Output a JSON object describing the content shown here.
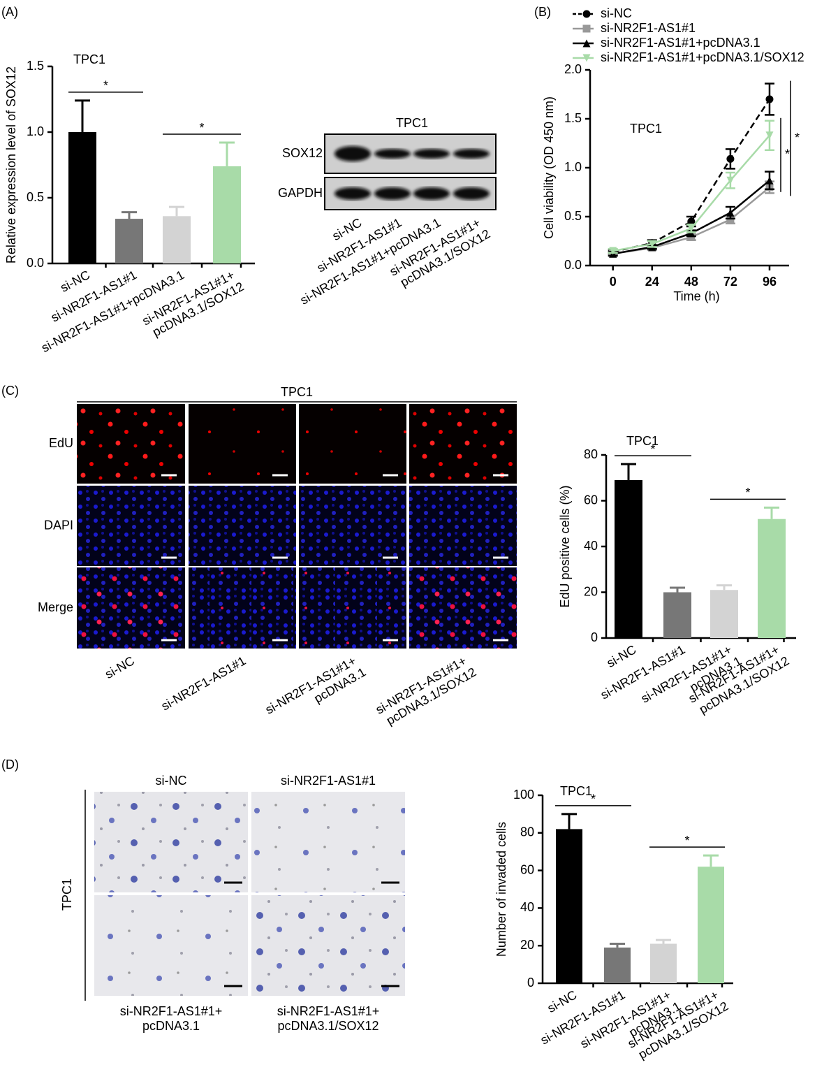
{
  "panel_labels": [
    "(A)",
    "(B)",
    "(C)",
    "(D)"
  ],
  "blot": {
    "title": "TPC1",
    "rows": [
      "SOX12",
      "GAPDH"
    ],
    "lanes": [
      [
        "si-NC"
      ],
      [
        "si-NR2F1-AS1#1"
      ],
      [
        "si-NR2F1-AS1#1+pcDNA3.1"
      ],
      [
        "si-NR2F1-AS1#1+",
        "pcDNA3.1/SOX12"
      ]
    ]
  },
  "edu_images": {
    "title": "TPC1",
    "rows": [
      "EdU",
      "DAPI",
      "Merge"
    ],
    "columns": [
      [
        "si-NC"
      ],
      [
        "si-NR2F1-AS1#1"
      ],
      [
        "si-NR2F1-AS1#1+",
        "pcDNA3.1"
      ],
      [
        "si-NR2F1-AS1#1+",
        "pcDNA3.1/SOX12"
      ]
    ]
  },
  "invasion_images": {
    "label": "TPC1",
    "columns": [
      [
        "si-NC"
      ],
      [
        "si-NR2F1-AS1#1"
      ],
      [
        "si-NR2F1-AS1#1+",
        "pcDNA3.1"
      ],
      [
        "si-NR2F1-AS1#1+",
        "pcDNA3.1/SOX12"
      ]
    ]
  },
  "chart_data": [
    {
      "type": "bar",
      "title": "TPC1",
      "y_label": "Relative expression level of SOX12",
      "categories": [
        [
          "si-NC"
        ],
        [
          "si-NR2F1-AS1#1"
        ],
        [
          "si-NR2F1-AS1#1+pcDNA3.1"
        ],
        [
          "si-NR2F1-AS1#1+",
          "pcDNA3.1/SOX12"
        ]
      ],
      "values": [
        1.0,
        0.34,
        0.36,
        0.74
      ],
      "errors": [
        0.24,
        0.05,
        0.07,
        0.18
      ],
      "colors": [
        "#000000",
        "#777777",
        "#d3d3d3",
        "#a8dba8"
      ],
      "ylim": [
        0,
        1.5
      ],
      "yticks": [
        {
          "value": 0,
          "label": "0.0"
        },
        0.5,
        {
          "value": 1,
          "label": "1.0"
        },
        1.5
      ],
      "significance": [
        {
          "label": "*",
          "between": [
            0,
            1
          ]
        },
        {
          "label": "*",
          "between": [
            2,
            3
          ]
        }
      ]
    },
    {
      "type": "line",
      "title": "TPC1",
      "x_label": "Time (h)",
      "y_label": "Cell viability (OD 450 nm)",
      "x": [
        0,
        24,
        48,
        72,
        96
      ],
      "xlim": [
        -14,
        108
      ],
      "xticks": [
        0,
        24,
        48,
        72,
        96
      ],
      "ylim": [
        0,
        2
      ],
      "yticks": [
        {
          "value": 0,
          "label": "0.0"
        },
        0.5,
        {
          "value": 1,
          "label": "1.0"
        },
        1.5,
        {
          "value": 2,
          "label": "2.0"
        }
      ],
      "series": [
        {
          "name": "si-NC",
          "color": "#000000",
          "marker": "circle",
          "line_style": "dashed",
          "values": [
            0.14,
            0.23,
            0.45,
            1.09,
            1.7
          ],
          "errors": [
            0.02,
            0.03,
            0.05,
            0.1,
            0.16
          ]
        },
        {
          "name": "si-NR2F1-AS1#1",
          "color": "#999999",
          "marker": "square",
          "line_style": "solid",
          "values": [
            0.12,
            0.18,
            0.29,
            0.47,
            0.8
          ],
          "errors": [
            0.01,
            0.02,
            0.03,
            0.04,
            0.06
          ]
        },
        {
          "name": "si-NR2F1-AS1#1+pcDNA3.1",
          "color": "#000000",
          "marker": "triangle",
          "line_style": "solid",
          "values": [
            0.12,
            0.19,
            0.33,
            0.54,
            0.87
          ],
          "errors": [
            0.02,
            0.02,
            0.03,
            0.06,
            0.09
          ]
        },
        {
          "name": "si-NR2F1-AS1#1+pcDNA3.1/SOX12",
          "color": "#a8dba8",
          "marker": "triangle-down",
          "line_style": "solid",
          "values": [
            0.15,
            0.22,
            0.38,
            0.87,
            1.33
          ],
          "errors": [
            0.02,
            0.03,
            0.04,
            0.08,
            0.15
          ]
        }
      ],
      "significance": [
        {
          "label": "*",
          "series": [
            3,
            2
          ]
        },
        {
          "label": "*",
          "series": [
            0,
            1
          ]
        }
      ]
    },
    {
      "type": "bar",
      "title": "TPC1",
      "y_label": "EdU positive cells (%)",
      "categories": [
        [
          "si-NC"
        ],
        [
          "si-NR2F1-AS1#1"
        ],
        [
          "si-NR2F1-AS1#1+",
          "pcDNA3.1"
        ],
        [
          "si-NR2F1-AS1#1+",
          "pcDNA3.1/SOX12"
        ]
      ],
      "values": [
        69,
        20,
        21,
        52
      ],
      "errors": [
        7,
        2,
        2,
        5
      ],
      "colors": [
        "#000000",
        "#777777",
        "#d3d3d3",
        "#a8dba8"
      ],
      "ylim": [
        0,
        80
      ],
      "yticks": [
        0,
        20,
        40,
        60,
        80
      ],
      "significance": [
        {
          "label": "*",
          "between": [
            0,
            1
          ]
        },
        {
          "label": "*",
          "between": [
            2,
            3
          ]
        }
      ]
    },
    {
      "type": "bar",
      "title": "TPC1",
      "y_label": "Number of invaded cells",
      "categories": [
        [
          "si-NC"
        ],
        [
          "si-NR2F1-AS1#1"
        ],
        [
          "si-NR2F1-AS1#1+",
          "pcDNA3.1"
        ],
        [
          "si-NR2F1-AS1#1+",
          "pcDNA3.1/SOX12"
        ]
      ],
      "values": [
        82,
        19,
        21,
        62
      ],
      "errors": [
        8,
        2,
        2,
        6
      ],
      "colors": [
        "#000000",
        "#777777",
        "#d3d3d3",
        "#a8dba8"
      ],
      "ylim": [
        0,
        100
      ],
      "yticks": [
        0,
        20,
        40,
        60,
        80,
        100
      ],
      "significance": [
        {
          "label": "*",
          "between": [
            0,
            1
          ]
        },
        {
          "label": "*",
          "between": [
            2,
            3
          ]
        }
      ]
    }
  ]
}
